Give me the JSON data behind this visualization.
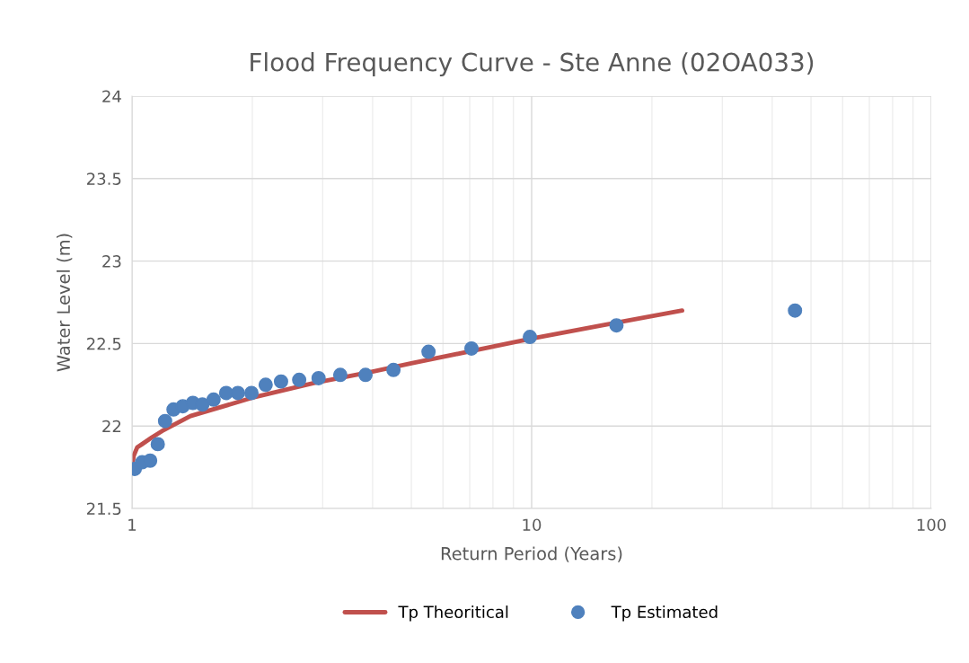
{
  "chart_data": {
    "type": "line",
    "title": "Flood Frequency Curve - Ste Anne (02OA033)",
    "xlabel": "Return Period (Years)",
    "ylabel": "Water Level (m)",
    "log": "x",
    "xlim": [
      1,
      100
    ],
    "xticks": [
      1,
      10,
      100
    ],
    "ylim": [
      21.5,
      24
    ],
    "yticks": [
      21.5,
      22,
      22.5,
      23,
      23.5,
      24
    ],
    "grid": true,
    "legend": "bottom",
    "series": [
      {
        "name": "Tp Theoritical",
        "color": "#c0504d",
        "marker": "none",
        "x": [
          1.0,
          1.01,
          1.03,
          1.06,
          1.12,
          1.19,
          1.4,
          1.99,
          2.85,
          4.0,
          5.0,
          10.0,
          15.0,
          23.8
        ],
        "values": [
          21.75,
          21.82,
          21.87,
          21.89,
          21.93,
          21.97,
          22.06,
          22.17,
          22.26,
          22.33,
          22.38,
          22.53,
          22.61,
          22.7
        ]
      },
      {
        "name": "Tp Estimated",
        "type": "scatter",
        "color": "#4f81bd",
        "marker": "circle",
        "x": [
          1.016,
          1.06,
          1.11,
          1.16,
          1.21,
          1.27,
          1.34,
          1.42,
          1.5,
          1.6,
          1.72,
          1.84,
          1.99,
          2.16,
          2.36,
          2.62,
          2.93,
          3.32,
          3.84,
          4.51,
          5.52,
          7.07,
          9.9,
          16.3,
          45.6
        ],
        "values": [
          21.74,
          21.78,
          21.79,
          21.89,
          22.03,
          22.1,
          22.12,
          22.14,
          22.13,
          22.16,
          22.2,
          22.2,
          22.2,
          22.25,
          22.27,
          22.28,
          22.29,
          22.31,
          22.31,
          22.34,
          22.45,
          22.47,
          22.54,
          22.61,
          22.7
        ]
      }
    ]
  }
}
